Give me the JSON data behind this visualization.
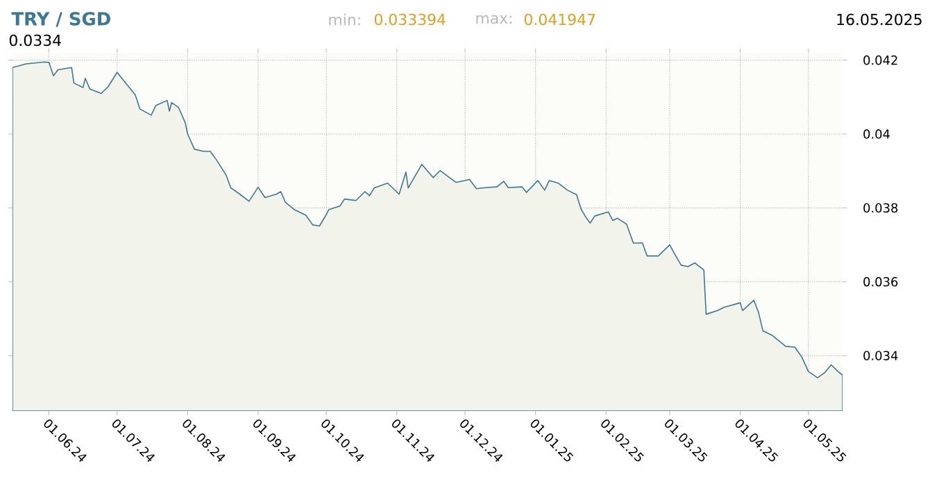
{
  "chart_data": {
    "type": "area",
    "title": "TRY / SGD",
    "annotations": [
      "min:",
      "0.033394",
      "max:",
      "0.041947",
      "16.05.2025",
      "0.0334"
    ],
    "x": [
      "2024-05-16",
      "2024-05-22",
      "2024-05-30",
      "2024-06-01",
      "2024-06-03",
      "2024-06-05",
      "2024-06-11",
      "2024-06-12",
      "2024-06-16",
      "2024-06-17",
      "2024-06-19",
      "2024-06-24",
      "2024-06-27",
      "2024-07-01",
      "2024-07-09",
      "2024-07-11",
      "2024-07-16",
      "2024-07-18",
      "2024-07-23",
      "2024-07-24",
      "2024-07-25",
      "2024-07-28",
      "2024-07-31",
      "2024-08-01",
      "2024-08-04",
      "2024-08-08",
      "2024-08-11",
      "2024-08-14",
      "2024-08-18",
      "2024-08-20",
      "2024-08-24",
      "2024-08-28",
      "2024-09-01",
      "2024-09-04",
      "2024-09-09",
      "2024-09-11",
      "2024-09-13",
      "2024-09-17",
      "2024-09-22",
      "2024-09-25",
      "2024-09-28",
      "2024-10-01",
      "2024-10-02",
      "2024-10-07",
      "2024-10-09",
      "2024-10-14",
      "2024-10-18",
      "2024-10-20",
      "2024-10-22",
      "2024-10-28",
      "2024-11-02",
      "2024-11-05",
      "2024-11-06",
      "2024-11-12",
      "2024-11-17",
      "2024-11-20",
      "2024-11-27",
      "2024-12-03",
      "2024-12-06",
      "2024-12-10",
      "2024-12-15",
      "2024-12-18",
      "2024-12-20",
      "2024-12-26",
      "2024-12-28",
      "2025-01-02",
      "2025-01-05",
      "2025-01-07",
      "2025-01-11",
      "2025-01-15",
      "2025-01-19",
      "2025-01-21",
      "2025-01-23",
      "2025-01-25",
      "2025-01-27",
      "2025-02-02",
      "2025-02-04",
      "2025-02-06",
      "2025-02-10",
      "2025-02-13",
      "2025-02-17",
      "2025-02-19",
      "2025-02-24",
      "2025-03-01",
      "2025-03-03",
      "2025-03-06",
      "2025-03-09",
      "2025-03-12",
      "2025-03-16",
      "2025-03-17",
      "2025-03-22",
      "2025-03-25",
      "2025-04-01",
      "2025-04-02",
      "2025-04-07",
      "2025-04-09",
      "2025-04-11",
      "2025-04-15",
      "2025-04-21",
      "2025-04-25",
      "2025-04-28",
      "2025-05-01",
      "2025-05-05",
      "2025-05-08",
      "2025-05-11",
      "2025-05-14",
      "2025-05-16"
    ],
    "values": [
      0.0418,
      0.0419,
      0.04195,
      0.04194,
      0.04158,
      0.04174,
      0.0418,
      0.04138,
      0.04126,
      0.04151,
      0.04122,
      0.0411,
      0.04128,
      0.04167,
      0.04106,
      0.04068,
      0.04051,
      0.04077,
      0.04091,
      0.04062,
      0.04085,
      0.04072,
      0.0403,
      0.04,
      0.03959,
      0.03953,
      0.03953,
      0.03927,
      0.03888,
      0.03854,
      0.03837,
      0.03818,
      0.03856,
      0.03828,
      0.03837,
      0.03844,
      0.03815,
      0.03795,
      0.0378,
      0.03754,
      0.03751,
      0.03782,
      0.03795,
      0.03805,
      0.03824,
      0.0382,
      0.03844,
      0.03833,
      0.03854,
      0.03867,
      0.03837,
      0.03897,
      0.03854,
      0.03918,
      0.03882,
      0.03901,
      0.03869,
      0.03877,
      0.03852,
      0.03855,
      0.03857,
      0.03872,
      0.03855,
      0.03857,
      0.03842,
      0.03874,
      0.03848,
      0.03874,
      0.03867,
      0.03848,
      0.03836,
      0.03797,
      0.03776,
      0.03759,
      0.03778,
      0.03789,
      0.03766,
      0.03772,
      0.03756,
      0.03705,
      0.03705,
      0.0367,
      0.0367,
      0.037,
      0.03677,
      0.03645,
      0.03641,
      0.03651,
      0.03632,
      0.03512,
      0.03522,
      0.03531,
      0.03543,
      0.03522,
      0.0355,
      0.03518,
      0.03467,
      0.03455,
      0.03425,
      0.03423,
      0.03397,
      0.03357,
      0.0334,
      0.03353,
      0.03375,
      0.03357,
      0.03347
    ],
    "color": "#3a7896",
    "xlim": [
      "2024-05-16",
      "2025-05-16"
    ],
    "xticks": [
      {
        "value": "2024-06-01",
        "label": "01.06.24"
      },
      {
        "value": "2024-07-01",
        "label": "01.07.24"
      },
      {
        "value": "2024-08-01",
        "label": "01.08.24"
      },
      {
        "value": "2024-09-01",
        "label": "01.09.24"
      },
      {
        "value": "2024-10-01",
        "label": "01.10.24"
      },
      {
        "value": "2024-11-01",
        "label": "01.11.24"
      },
      {
        "value": "2024-12-01",
        "label": "01.12.24"
      },
      {
        "value": "2025-01-01",
        "label": "01.01.25"
      },
      {
        "value": "2025-02-01",
        "label": "01.02.25"
      },
      {
        "value": "2025-03-01",
        "label": "01.03.25"
      },
      {
        "value": "2025-04-01",
        "label": "01.04.25"
      },
      {
        "value": "2025-05-01",
        "label": "01.05.25"
      }
    ],
    "ylim": [
      0.0325,
      0.0422
    ],
    "yticks": [
      0.034,
      0.036,
      0.038,
      0.04,
      0.042
    ],
    "grid": true,
    "marker": "none",
    "line_style": "solid"
  }
}
